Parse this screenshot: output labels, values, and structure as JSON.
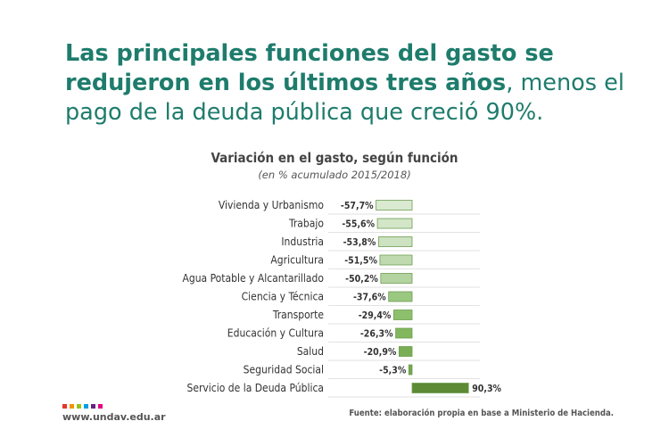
{
  "headline": {
    "bold_part": "Las principales funciones del gasto se redujeron en los últimos tres años",
    "light_part": ", menos el pago de la deuda pública que creció 90%."
  },
  "brand_colors": [
    "#e63329",
    "#f39200",
    "#95c11f",
    "#009fe3",
    "#662483",
    "#e6007e"
  ],
  "footer": {
    "website": "www.undav.edu.ar",
    "source": "Fuente: elaboración propia en base a Ministerio de Hacienda."
  },
  "chart_data": {
    "type": "bar",
    "orientation": "horizontal",
    "title": "Variación en el gasto, según función",
    "subtitle": "(en % acumulado 2015/2018)",
    "categories": [
      "Vivienda y Urbanismo",
      "Trabajo",
      "Industria",
      "Agricultura",
      "Agua Potable y Alcantarillado",
      "Ciencia y Técnica",
      "Transporte",
      "Educación y Cultura",
      "Salud",
      "Seguridad Social",
      "Servicio de la Deuda Pública"
    ],
    "values": [
      -57.7,
      -55.6,
      -53.8,
      -51.5,
      -50.2,
      -37.6,
      -29.4,
      -26.3,
      -20.9,
      -5.3,
      90.3
    ],
    "value_labels": [
      "-57,7%",
      "-55,6%",
      "-53,8%",
      "-51,5%",
      "-50,2%",
      "-37,6%",
      "-29,4%",
      "-26,3%",
      "-20,9%",
      "-5,3%",
      "90,3%"
    ],
    "bar_colors": [
      "#d9ead0",
      "#d3e6c8",
      "#cce2c0",
      "#bfdaaf",
      "#b3d3a0",
      "#9bc880",
      "#8dc06c",
      "#82b75d",
      "#7aae54",
      "#73a84d",
      "#5c8a35"
    ],
    "grid": true,
    "legend": "none"
  }
}
